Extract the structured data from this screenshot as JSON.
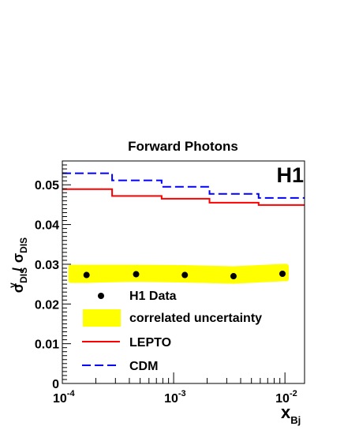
{
  "chart_data": {
    "type": "line",
    "title": "Forward Photons",
    "experiment_label": "H1",
    "xlabel": "x",
    "xlabel_sub": "Bj",
    "ylabel_parts": {
      "sigma": "σ",
      "sup": "γ",
      "sub": "DIS",
      "slash": "/",
      "sub2": "DIS"
    },
    "xscale": "log",
    "xlim": [
      0.0001,
      0.015
    ],
    "ylim": [
      0,
      0.056
    ],
    "x_ticks": [
      {
        "value": 0.0001,
        "base": "10",
        "exp": "-4"
      },
      {
        "value": 0.001,
        "base": "10",
        "exp": "-3"
      },
      {
        "value": 0.01,
        "base": "10",
        "exp": "-2"
      }
    ],
    "y_ticks": [
      {
        "value": 0,
        "label": "0"
      },
      {
        "value": 0.01,
        "label": "0.01"
      },
      {
        "value": 0.02,
        "label": "0.02"
      },
      {
        "value": 0.03,
        "label": "0.03"
      },
      {
        "value": 0.04,
        "label": "0.04"
      },
      {
        "value": 0.05,
        "label": "0.05"
      }
    ],
    "grid": false,
    "legend_position": "bottom-left",
    "bin_edges": [
      0.0001,
      0.00028,
      0.00078,
      0.0021,
      0.0058,
      0.015
    ],
    "data_points": {
      "name": "H1 Data",
      "x": [
        0.000165,
        0.00046,
        0.00126,
        0.00345,
        0.0095
      ],
      "y": [
        0.0273,
        0.0275,
        0.0273,
        0.027,
        0.0276
      ],
      "color": "#000000"
    },
    "uncertainty_band": {
      "name": "correlated uncertainty",
      "x": [
        0.000165,
        0.00046,
        0.00126,
        0.00345,
        0.0095
      ],
      "low": [
        0.0259,
        0.0262,
        0.026,
        0.0257,
        0.0263
      ],
      "high": [
        0.0293,
        0.0293,
        0.0292,
        0.0289,
        0.0295
      ],
      "color": "#ffff00"
    },
    "series": [
      {
        "name": "LEPTO",
        "style": "solid",
        "color": "#ff0000",
        "values": [
          0.0489,
          0.0472,
          0.0465,
          0.0455,
          0.0449
        ]
      },
      {
        "name": "CDM",
        "style": "dashed",
        "color": "#0000ff",
        "values": [
          0.0529,
          0.0511,
          0.0495,
          0.0477,
          0.0467
        ]
      }
    ],
    "legend": [
      {
        "kind": "marker",
        "label": "H1 Data"
      },
      {
        "kind": "band",
        "label": "correlated uncertainty"
      },
      {
        "kind": "solid",
        "label": "LEPTO"
      },
      {
        "kind": "dashed",
        "label": "CDM"
      }
    ]
  }
}
